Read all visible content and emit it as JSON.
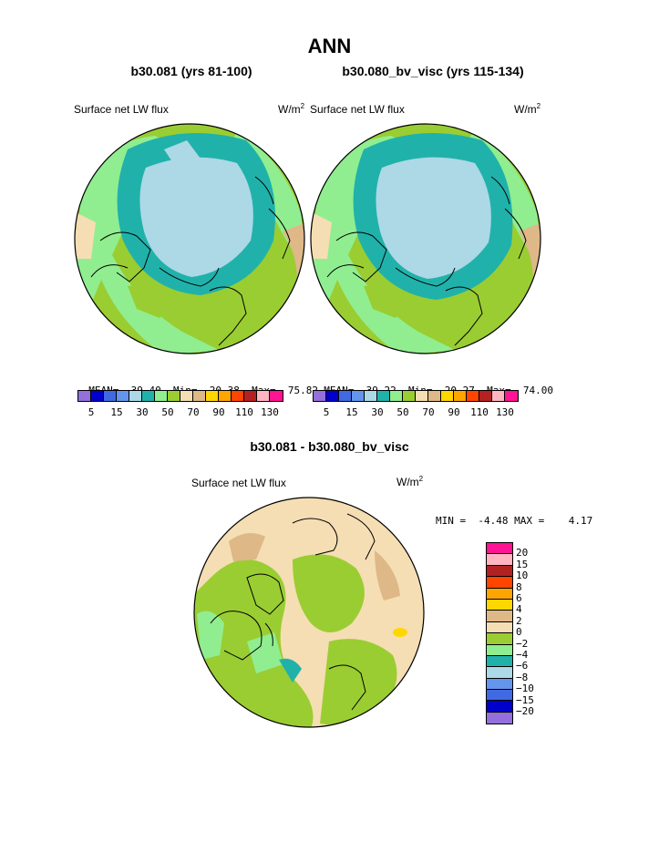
{
  "title": "ANN",
  "panels": [
    {
      "subtitle": "b30.081 (yrs 81-100)",
      "variable": "Surface net LW flux",
      "unit_base": "W/m",
      "unit_exp": "2",
      "stats": {
        "mean_label": "MEAN=",
        "mean": "39.40",
        "min_label": "Min=",
        "min": "20.38",
        "max_label": "Max=",
        "max": "75.82"
      }
    },
    {
      "subtitle": "b30.080_bv_visc (yrs 115-134)",
      "variable": "Surface net LW flux",
      "unit_base": "W/m",
      "unit_exp": "2",
      "stats": {
        "mean_label": "MEAN=",
        "mean": "39.22",
        "min_label": "Min=",
        "min": "20.27",
        "max_label": "Max=",
        "max": "74.00"
      }
    }
  ],
  "colorbar_top": {
    "colors": [
      "#9370db",
      "#0000cd",
      "#4169e1",
      "#6495ed",
      "#add8e6",
      "#20b2aa",
      "#90ee90",
      "#9acd32",
      "#f5deb3",
      "#deb887",
      "#ffd700",
      "#ffa500",
      "#ff4500",
      "#b22222",
      "#ffb6c1",
      "#ff1493"
    ],
    "labels": [
      "5",
      "15",
      "30",
      "50",
      "70",
      "90",
      "110",
      "130"
    ]
  },
  "diff": {
    "subtitle": "b30.081 - b30.080_bv_visc",
    "variable": "Surface net LW flux",
    "unit_base": "W/m",
    "unit_exp": "2",
    "stats_text": "MIN =  -4.48 MAX =    4.17"
  },
  "colorbar_diff": {
    "colors": [
      "#ff1493",
      "#ffb6c1",
      "#b22222",
      "#ff4500",
      "#ffa500",
      "#ffd700",
      "#deb887",
      "#f5deb3",
      "#9acd32",
      "#90ee90",
      "#20b2aa",
      "#add8e6",
      "#6495ed",
      "#4169e1",
      "#0000cd",
      "#9370db"
    ],
    "labels": [
      "20",
      "15",
      "10",
      "8",
      "6",
      "4",
      "2",
      "0",
      "−2",
      "−4",
      "−6",
      "−8",
      "−10",
      "−15",
      "−20"
    ]
  }
}
